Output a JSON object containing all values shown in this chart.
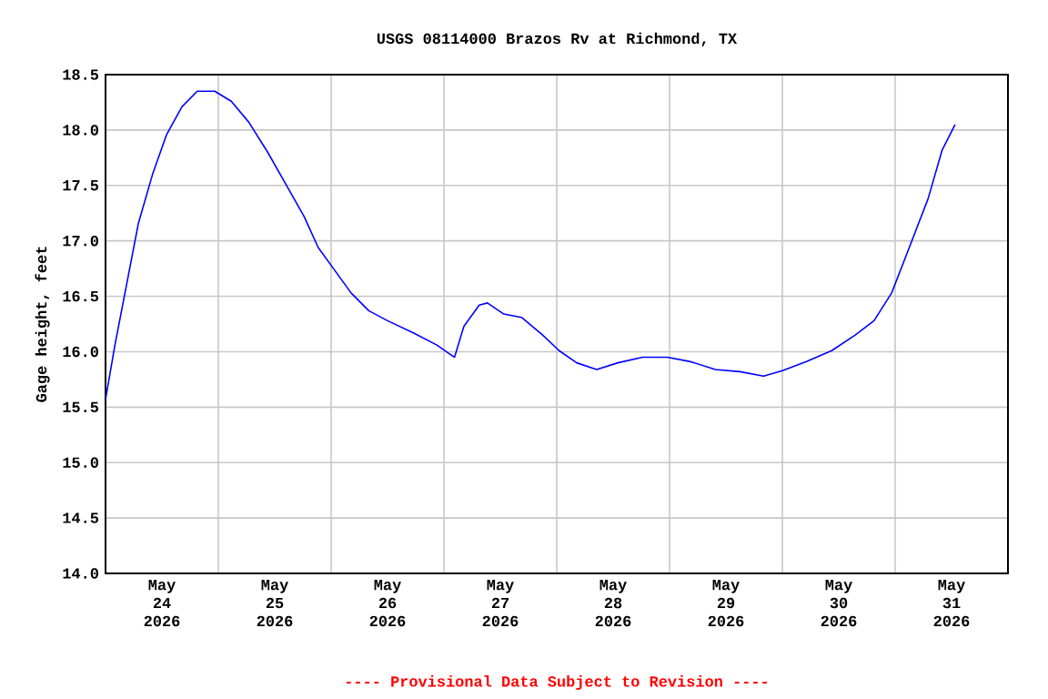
{
  "chart_data": {
    "type": "line",
    "title": "USGS 08114000 Brazos Rv at Richmond, TX",
    "ylabel": "Gage height, feet",
    "annotations": [
      "---- Provisional Data Subject to Revision ----"
    ],
    "x": [
      "2026-05-24T00:00",
      "2026-05-24T02:00",
      "2026-05-24T04:30",
      "2026-05-24T07:00",
      "2026-05-24T10:00",
      "2026-05-24T13:00",
      "2026-05-24T16:15",
      "2026-05-24T19:30",
      "2026-05-24T23:15",
      "2026-05-25T02:45",
      "2026-05-25T06:30",
      "2026-05-25T10:30",
      "2026-05-25T14:15",
      "2026-05-25T18:15",
      "2026-05-25T21:15",
      "2026-05-26T00:30",
      "2026-05-26T04:15",
      "2026-05-26T08:00",
      "2026-05-26T12:00",
      "2026-05-26T17:30",
      "2026-05-26T22:30",
      "2026-05-27T02:15",
      "2026-05-27T04:15",
      "2026-05-27T07:30",
      "2026-05-27T09:15",
      "2026-05-27T12:45",
      "2026-05-27T16:30",
      "2026-05-27T21:00",
      "2026-05-28T00:30",
      "2026-05-28T04:15",
      "2026-05-28T08:30",
      "2026-05-28T13:00",
      "2026-05-28T18:15",
      "2026-05-28T23:30",
      "2026-05-29T04:30",
      "2026-05-29T09:45",
      "2026-05-29T15:00",
      "2026-05-29T20:00",
      "2026-05-30T00:00",
      "2026-05-30T05:00",
      "2026-05-30T10:30",
      "2026-05-30T15:30",
      "2026-05-30T19:30",
      "2026-05-30T23:15",
      "2026-05-31T03:00",
      "2026-05-31T07:00",
      "2026-05-31T10:00",
      "2026-05-31T12:45"
    ],
    "series": [
      {
        "color": "#0000ff",
        "values": [
          15.57,
          16.06,
          16.61,
          17.16,
          17.6,
          17.96,
          18.21,
          18.35,
          18.35,
          18.26,
          18.07,
          17.8,
          17.52,
          17.22,
          16.94,
          16.75,
          16.53,
          16.37,
          16.28,
          16.17,
          16.06,
          15.95,
          16.23,
          16.42,
          16.44,
          16.34,
          16.31,
          16.15,
          16.01,
          15.9,
          15.84,
          15.9,
          15.95,
          15.95,
          15.91,
          15.84,
          15.82,
          15.78,
          15.83,
          15.91,
          16.01,
          16.15,
          16.28,
          16.53,
          16.94,
          17.38,
          17.82,
          18.05
        ]
      }
    ],
    "xlim": [
      "2026-05-24T00:00",
      "2026-06-01T00:00"
    ],
    "xticks": [
      {
        "value": "2026-05-24T12:00",
        "label": "May 24 2026"
      },
      {
        "value": "2026-05-25T00:00",
        "label": null
      },
      {
        "value": "2026-05-25T12:00",
        "label": "May 25 2026"
      },
      {
        "value": "2026-05-26T00:00",
        "label": null
      },
      {
        "value": "2026-05-26T12:00",
        "label": "May 26 2026"
      },
      {
        "value": "2026-05-27T00:00",
        "label": null
      },
      {
        "value": "2026-05-27T12:00",
        "label": "May 27 2026"
      },
      {
        "value": "2026-05-28T00:00",
        "label": null
      },
      {
        "value": "2026-05-28T12:00",
        "label": "May 28 2026"
      },
      {
        "value": "2026-05-29T00:00",
        "label": null
      },
      {
        "value": "2026-05-29T12:00",
        "label": "May 29 2026"
      },
      {
        "value": "2026-05-30T00:00",
        "label": null
      },
      {
        "value": "2026-05-30T12:00",
        "label": "May 30 2026"
      },
      {
        "value": "2026-05-31T00:00",
        "label": null
      },
      {
        "value": "2026-05-31T12:00",
        "label": "May 31 2026"
      }
    ],
    "ylim": [
      14.0,
      18.5
    ],
    "yticks": [
      {
        "value": 14.0,
        "label": "14.0"
      },
      {
        "value": 14.5,
        "label": "14.5"
      },
      {
        "value": 15.0,
        "label": "15.0"
      },
      {
        "value": 15.5,
        "label": "15.5"
      },
      {
        "value": 16.0,
        "label": "16.0"
      },
      {
        "value": 16.5,
        "label": "16.5"
      },
      {
        "value": 17.0,
        "label": "17.0"
      },
      {
        "value": 17.5,
        "label": "17.5"
      },
      {
        "value": 18.0,
        "label": "18.0"
      },
      {
        "value": 18.5,
        "label": "18.5"
      }
    ],
    "grid": true,
    "marker": "none",
    "line_style": "solid"
  }
}
